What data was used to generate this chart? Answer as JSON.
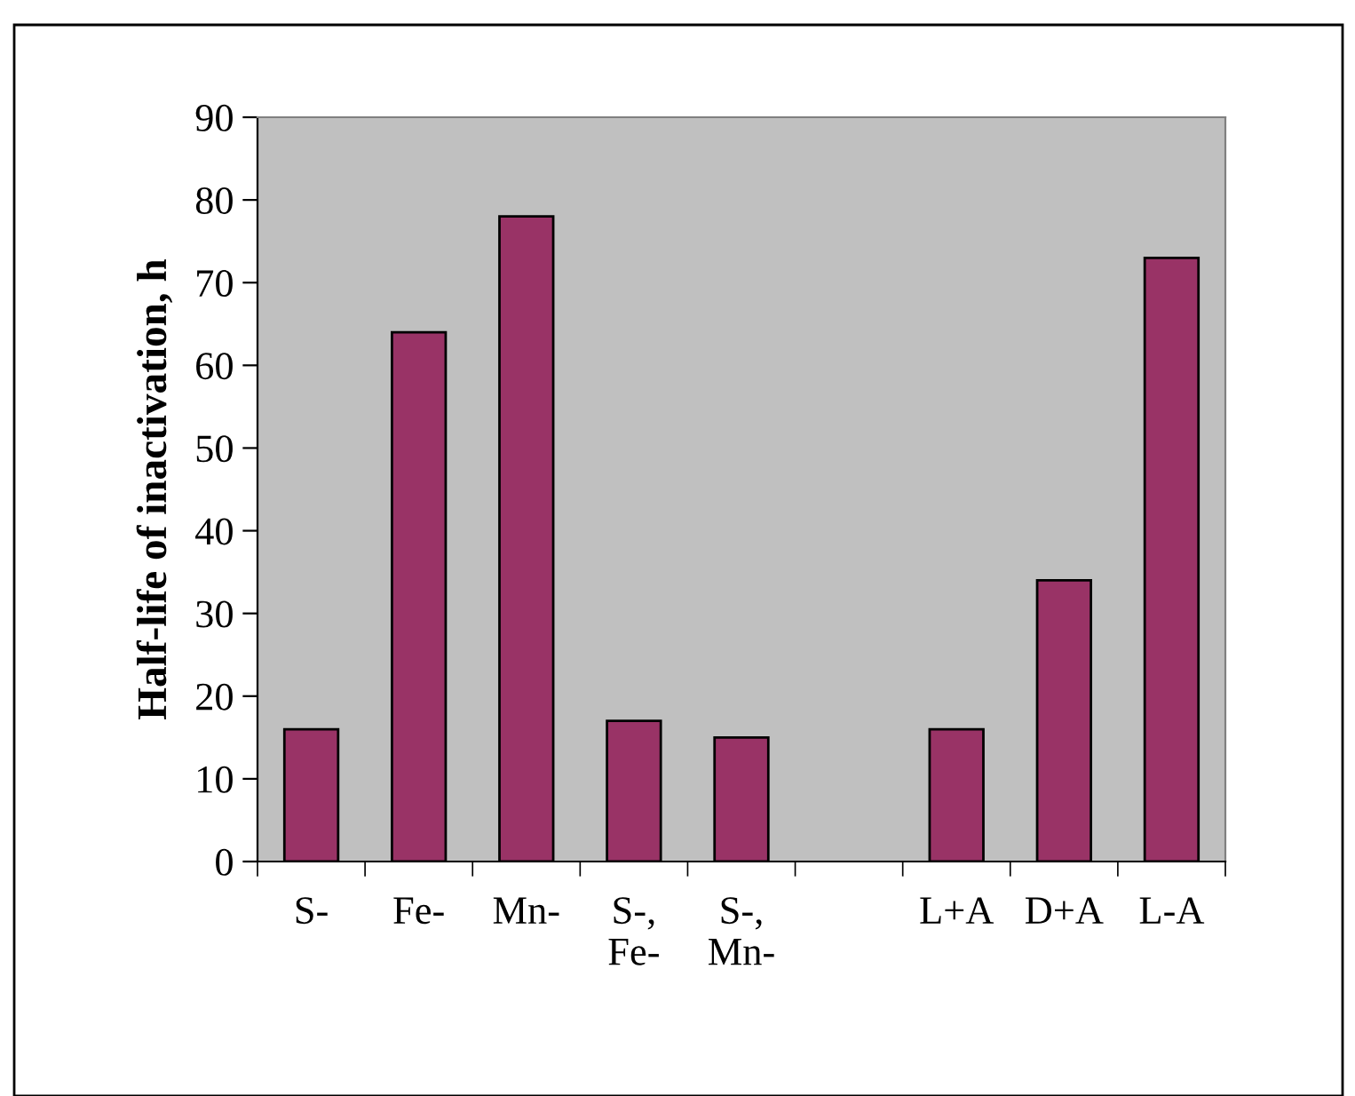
{
  "chart_data": {
    "type": "bar",
    "ylabel": "Half-life of inactivation, h",
    "categories": [
      "S-",
      "Fe-",
      "Mn-",
      "S-,\nFe-",
      "S-,\nMn-",
      null,
      "L+A",
      "D+A",
      "L-A"
    ],
    "values": [
      16,
      64,
      78,
      17,
      15,
      null,
      16,
      34,
      73
    ],
    "color": "#993366",
    "ylim": [
      0,
      90
    ],
    "yticks": [
      0,
      10,
      20,
      30,
      40,
      50,
      60,
      70,
      80,
      90
    ],
    "grid": false,
    "legend": false
  }
}
